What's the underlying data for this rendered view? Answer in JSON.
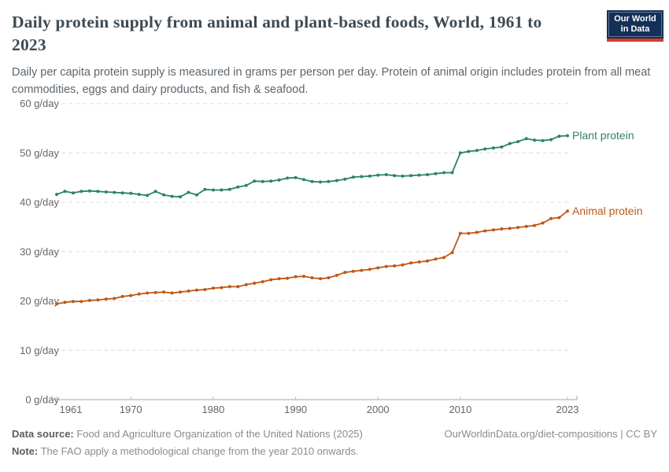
{
  "header": {
    "title": "Daily protein supply from animal and plant-based foods, World, 1961 to 2023",
    "subtitle": "Daily per capita protein supply is measured in grams per person per day. Protein of animal origin includes protein from all meat commodities, eggs and dairy products, and fish & seafood.",
    "logo": {
      "line1": "Our World",
      "line2": "in Data"
    }
  },
  "chart_data": {
    "type": "line",
    "title": "Daily protein supply from animal and plant-based foods, World, 1961 to 2023",
    "xlabel": "",
    "ylabel": "g/day",
    "xlim": [
      1961,
      2023
    ],
    "ylim": [
      0,
      60
    ],
    "grid": "horizontal dashed",
    "legend_position": "end-of-line labels",
    "xticks": [
      1961,
      1970,
      1980,
      1990,
      2000,
      2010,
      2023
    ],
    "yticks": [
      0,
      10,
      20,
      30,
      40,
      50,
      60
    ],
    "ytick_labels": [
      "0 g/day",
      "10 g/day",
      "20 g/day",
      "30 g/day",
      "40 g/day",
      "50 g/day",
      "60 g/day"
    ],
    "x": [
      1961,
      1962,
      1963,
      1964,
      1965,
      1966,
      1967,
      1968,
      1969,
      1970,
      1971,
      1972,
      1973,
      1974,
      1975,
      1976,
      1977,
      1978,
      1979,
      1980,
      1981,
      1982,
      1983,
      1984,
      1985,
      1986,
      1987,
      1988,
      1989,
      1990,
      1991,
      1992,
      1993,
      1994,
      1995,
      1996,
      1997,
      1998,
      1999,
      2000,
      2001,
      2002,
      2003,
      2004,
      2005,
      2006,
      2007,
      2008,
      2009,
      2010,
      2011,
      2012,
      2013,
      2014,
      2015,
      2016,
      2017,
      2018,
      2019,
      2020,
      2021,
      2022,
      2023
    ],
    "series": [
      {
        "name": "Plant protein",
        "color": "#2c8465",
        "values": [
          41.6,
          42.2,
          41.9,
          42.2,
          42.3,
          42.2,
          42.1,
          42.0,
          41.9,
          41.8,
          41.6,
          41.4,
          42.2,
          41.5,
          41.2,
          41.1,
          42.0,
          41.5,
          42.6,
          42.5,
          42.5,
          42.6,
          43.1,
          43.4,
          44.3,
          44.2,
          44.3,
          44.5,
          44.9,
          45.0,
          44.6,
          44.2,
          44.1,
          44.2,
          44.4,
          44.7,
          45.1,
          45.2,
          45.3,
          45.5,
          45.6,
          45.4,
          45.3,
          45.4,
          45.5,
          45.6,
          45.8,
          46.0,
          46.0,
          50.0,
          50.3,
          50.5,
          50.8,
          51.0,
          51.2,
          51.9,
          52.3,
          52.9,
          52.6,
          52.5,
          52.7,
          53.4,
          53.5
        ]
      },
      {
        "name": "Animal protein",
        "color": "#be5915",
        "values": [
          19.4,
          19.7,
          19.9,
          19.9,
          20.1,
          20.2,
          20.4,
          20.5,
          20.9,
          21.1,
          21.4,
          21.6,
          21.7,
          21.8,
          21.6,
          21.8,
          22.0,
          22.2,
          22.3,
          22.6,
          22.7,
          22.9,
          22.9,
          23.3,
          23.6,
          23.9,
          24.3,
          24.5,
          24.6,
          24.9,
          25.0,
          24.7,
          24.5,
          24.7,
          25.2,
          25.8,
          26.0,
          26.2,
          26.4,
          26.7,
          27.0,
          27.1,
          27.3,
          27.7,
          27.9,
          28.1,
          28.5,
          28.8,
          29.8,
          33.7,
          33.7,
          33.9,
          34.2,
          34.4,
          34.6,
          34.7,
          34.9,
          35.1,
          35.3,
          35.8,
          36.7,
          36.9,
          38.2
        ]
      }
    ]
  },
  "footer": {
    "data_source_label": "Data source:",
    "data_source": " Food and Agriculture Organization of the United Nations (2025)",
    "note_label": "Note:",
    "note": " The FAO apply a methodological change from the year 2010 onwards.",
    "link": "OurWorldinData.org/diet-compositions | CC BY"
  }
}
